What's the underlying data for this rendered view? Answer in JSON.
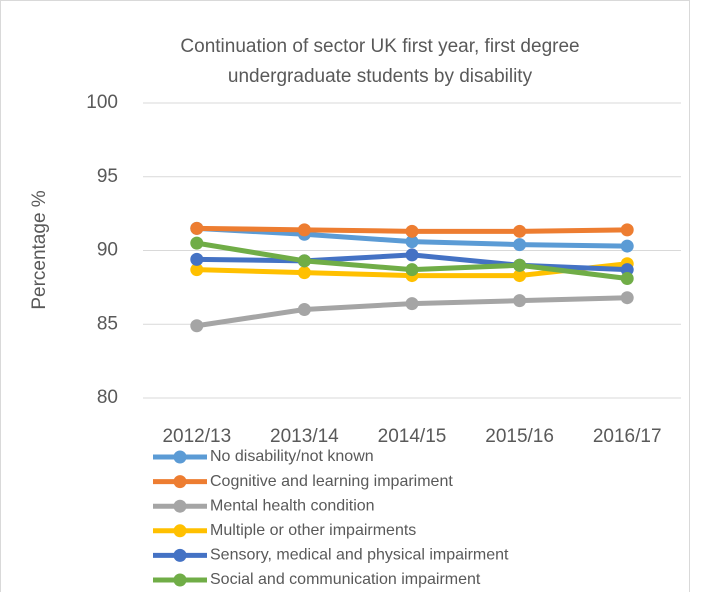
{
  "chart_data": {
    "type": "line",
    "title": "Continuation of sector UK first year, first degree undergraduate students by disability",
    "y_label": "Percentage %",
    "categories": [
      "2012/13",
      "2013/14",
      "2014/15",
      "2015/16",
      "2016/17"
    ],
    "series": [
      {
        "name": "No disability/not known",
        "color": "#5b9bd5",
        "values": [
          91.5,
          91.1,
          90.6,
          90.4,
          90.3
        ]
      },
      {
        "name": "Cognitive and learning impariment",
        "color": "#ed7d31",
        "values": [
          91.5,
          91.4,
          91.3,
          91.3,
          91.4
        ]
      },
      {
        "name": "Mental health condition",
        "color": "#a5a5a5",
        "values": [
          84.9,
          86.0,
          86.4,
          86.6,
          86.8
        ]
      },
      {
        "name": "Multiple or other impairments",
        "color": "#ffc000",
        "values": [
          88.7,
          88.5,
          88.3,
          88.3,
          89.1
        ]
      },
      {
        "name": "Sensory, medical and physical impairment",
        "color": "#4472c4",
        "values": [
          89.4,
          89.3,
          89.7,
          89.0,
          88.7
        ]
      },
      {
        "name": "Social and communication impairment",
        "color": "#70ad47",
        "values": [
          90.5,
          89.3,
          88.7,
          89.0,
          88.1
        ]
      }
    ],
    "ylim": [
      80,
      100
    ],
    "yticks": [
      80,
      85,
      90,
      95,
      100
    ],
    "grid": true,
    "legend": "bottom"
  }
}
